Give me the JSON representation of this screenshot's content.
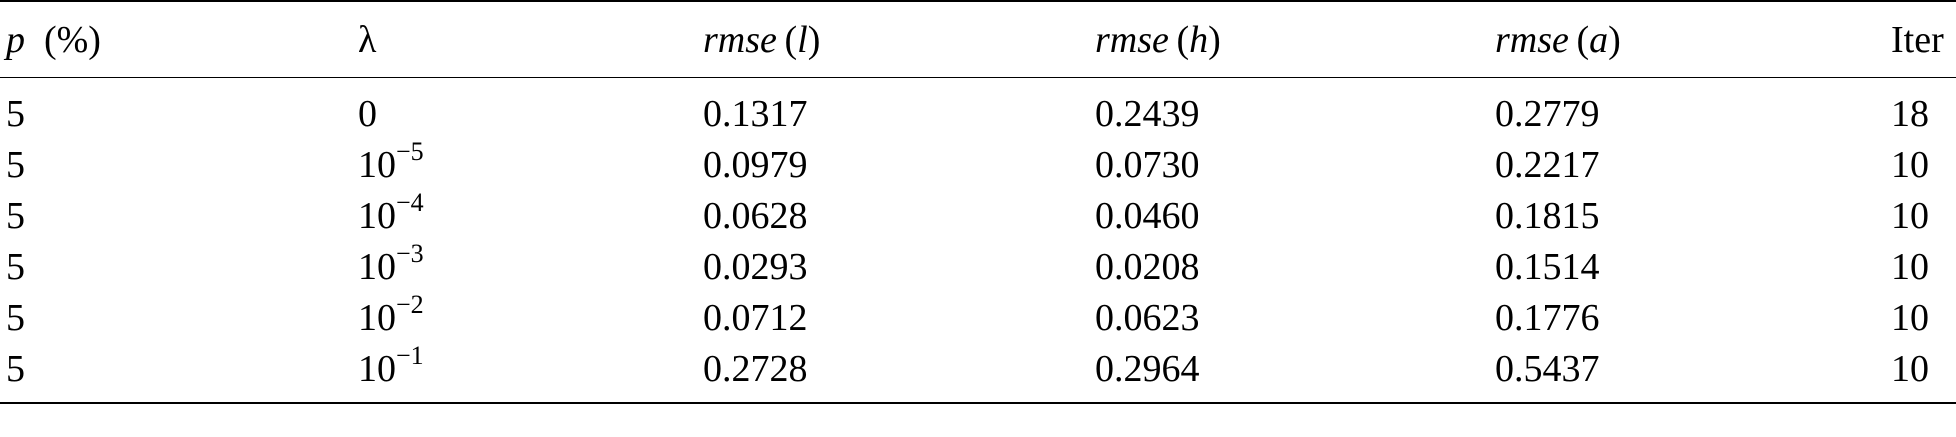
{
  "table": {
    "headers": {
      "p_symbol": "p",
      "p_unit": "(%)",
      "lambda": "λ",
      "rmse_l": {
        "fn": "rmse",
        "open": "(",
        "arg": "l",
        "close": ")"
      },
      "rmse_h": {
        "fn": "rmse",
        "open": "(",
        "arg": "h",
        "close": ")"
      },
      "rmse_a": {
        "fn": "rmse",
        "open": "(",
        "arg": "a",
        "close": ")"
      },
      "iter": "Iter"
    },
    "rows": [
      {
        "p": "5",
        "lambda_base": "0",
        "lambda_exp": "",
        "rmse_l": "0.1317",
        "rmse_h": "0.2439",
        "rmse_a": "0.2779",
        "iter": "18"
      },
      {
        "p": "5",
        "lambda_base": "10",
        "lambda_exp": "−5",
        "rmse_l": "0.0979",
        "rmse_h": "0.0730",
        "rmse_a": "0.2217",
        "iter": "10"
      },
      {
        "p": "5",
        "lambda_base": "10",
        "lambda_exp": "−4",
        "rmse_l": "0.0628",
        "rmse_h": "0.0460",
        "rmse_a": "0.1815",
        "iter": "10"
      },
      {
        "p": "5",
        "lambda_base": "10",
        "lambda_exp": "−3",
        "rmse_l": "0.0293",
        "rmse_h": "0.0208",
        "rmse_a": "0.1514",
        "iter": "10"
      },
      {
        "p": "5",
        "lambda_base": "10",
        "lambda_exp": "−2",
        "rmse_l": "0.0712",
        "rmse_h": "0.0623",
        "rmse_a": "0.1776",
        "iter": "10"
      },
      {
        "p": "5",
        "lambda_base": "10",
        "lambda_exp": "−1",
        "rmse_l": "0.2728",
        "rmse_h": "0.2964",
        "rmse_a": "0.5437",
        "iter": "10"
      }
    ]
  }
}
